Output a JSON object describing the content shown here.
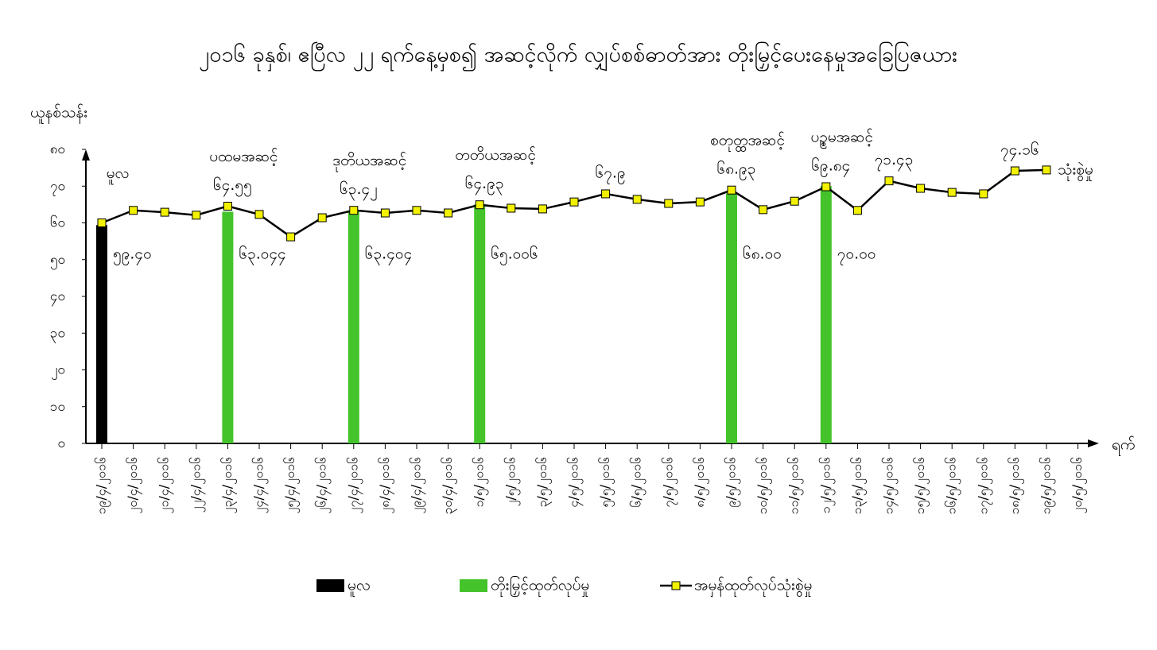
{
  "chart_data": {
    "type": "bar-line",
    "title": "၂၀၁၆ ခုနှစ်၊ ဧပြီလ ၂၂ ရက်နေ့မှစ၍ အဆင့်လိုက် လျှပ်စစ်ဓာတ်အား တိုးမြှင့်ပေးနေမှုအခြေပြဇယား",
    "y_label": "ယူနစ်သန်း",
    "x_label": "ရက်",
    "categories": [
      "၁၉/၄/၂၀၁၆",
      "၂၀/၄/၂၀၁၆",
      "၂၁/၄/၂၀၁၆",
      "၂၂/၄/၂၀၁၆",
      "၂၃/၄/၂၀၁၆",
      "၂၄/၄/၂၀၁၆",
      "၂၅/၄/၂၀၁၆",
      "၂၆/၄/၂၀၁၆",
      "၂၇/၄/၂၀၁၆",
      "၂၈/၄/၂၀၁၆",
      "၂၉/၄/၂၀၁၆",
      "၃၀/၄/၂၀၁၆",
      "၁/၅/၂၀၁၆",
      "၂/၅/၂၀၁၆",
      "၃/၅/၂၀၁၆",
      "၄/၅/၂၀၁၆",
      "၅/၅/၂၀၁၆",
      "၆/၅/၂၀၁၆",
      "၇/၅/၂၀၁၆",
      "၈/၅/၂၀၁၆",
      "၉/၅/၂၀၁၆",
      "၁၀/၅/၂၀၁၆",
      "၁၁/၅/၂၀၁၆",
      "၁၂/၅/၂၀၁၆",
      "၁၃/၅/၂၀၁၆",
      "၁၄/၅/၂၀၁၆",
      "၁၅/၅/၂၀၁၆",
      "၁၆/၅/၂၀၁၆",
      "၁၇/၅/၂၀၁၆",
      "၁၈/၅/၂၀၁၆",
      "၁၉/၅/၂၀၁၆",
      "၂၀/၅/၂၀၁၆"
    ],
    "series": [
      {
        "name": "မူလ",
        "kind": "bar",
        "color": "#000000",
        "values": [
          59.4,
          null,
          null,
          null,
          null,
          null,
          null,
          null,
          null,
          null,
          null,
          null,
          null,
          null,
          null,
          null,
          null,
          null,
          null,
          null,
          null,
          null,
          null,
          null,
          null,
          null,
          null,
          null,
          null,
          null,
          null,
          null
        ],
        "value_labels": [
          "၅၉.၄၀",
          null,
          null,
          null,
          null,
          null,
          null,
          null,
          null,
          null,
          null,
          null,
          null,
          null,
          null,
          null,
          null,
          null,
          null,
          null,
          null,
          null,
          null,
          null,
          null,
          null,
          null,
          null,
          null,
          null,
          null,
          null
        ]
      },
      {
        "name": "တိုးမြှင့်ထုတ်လုပ်မှု",
        "kind": "bar",
        "color": "#44c42a",
        "values": [
          null,
          null,
          null,
          null,
          63.044,
          null,
          null,
          null,
          63.404,
          null,
          null,
          null,
          65.006,
          null,
          null,
          null,
          null,
          null,
          null,
          null,
          68,
          null,
          null,
          70,
          null,
          null,
          null,
          null,
          null,
          null,
          null,
          null
        ],
        "value_labels": [
          null,
          null,
          null,
          null,
          "၆၃.၀၄၄",
          null,
          null,
          null,
          "၆၃.၄၀၄",
          null,
          null,
          null,
          "၆၅.၀၀၆",
          null,
          null,
          null,
          null,
          null,
          null,
          null,
          "၆၈.၀၀",
          null,
          null,
          "၇၀.၀၀",
          null,
          null,
          null,
          null,
          null,
          null,
          null,
          null
        ]
      },
      {
        "name": "အမှန်ထုတ်လုပ်သုံးစွဲမှု",
        "kind": "line",
        "color": "#000000",
        "marker_color": "#f2f200",
        "values": [
          60,
          63.4,
          62.9,
          62.1,
          64.55,
          62.3,
          56.2,
          61.4,
          63.42,
          62.7,
          63.4,
          62.7,
          64.93,
          64,
          63.8,
          65.7,
          67.9,
          66.4,
          65.3,
          65.7,
          68.93,
          63.6,
          65.9,
          69.84,
          63.4,
          71.43,
          69.4,
          68.3,
          67.9,
          74.16,
          74.4,
          null
        ],
        "value_labels": [
          null,
          null,
          null,
          null,
          "၆၄.၅၅",
          null,
          null,
          null,
          "၆၃.၄၂",
          null,
          null,
          null,
          "၆၄.၉၃",
          null,
          null,
          null,
          "၆၇.၉",
          null,
          null,
          null,
          "၆၈.၉၃",
          null,
          null,
          "၆၉.၈၄",
          null,
          "၇၁.၄၃",
          null,
          null,
          null,
          "၇၄.၁၆",
          null,
          null
        ],
        "end_label": "သုံးစွဲမှု"
      }
    ],
    "annotations": [
      {
        "index": 0,
        "text": "မူလ"
      },
      {
        "index": 4,
        "text": "ပထမအဆင့်"
      },
      {
        "index": 8,
        "text": "ဒုတိယအဆင့်"
      },
      {
        "index": 12,
        "text": "တတိယအဆင့်"
      },
      {
        "index": 20,
        "text": "စတုတ္ထအဆင့်"
      },
      {
        "index": 23,
        "text": "ပဉ္စမအဆင့်"
      }
    ],
    "ylim": [
      0,
      80
    ],
    "yticks": [
      {
        "value": 0,
        "label": "၀"
      },
      {
        "value": 10,
        "label": "၁၀"
      },
      {
        "value": 20,
        "label": "၂၀"
      },
      {
        "value": 30,
        "label": "၃၀"
      },
      {
        "value": 40,
        "label": "၄၀"
      },
      {
        "value": 50,
        "label": "၅၀"
      },
      {
        "value": 60,
        "label": "၆၀"
      },
      {
        "value": 70,
        "label": "၇၀"
      },
      {
        "value": 80,
        "label": "၈၀"
      }
    ],
    "grid": false,
    "legend": "bottom"
  }
}
